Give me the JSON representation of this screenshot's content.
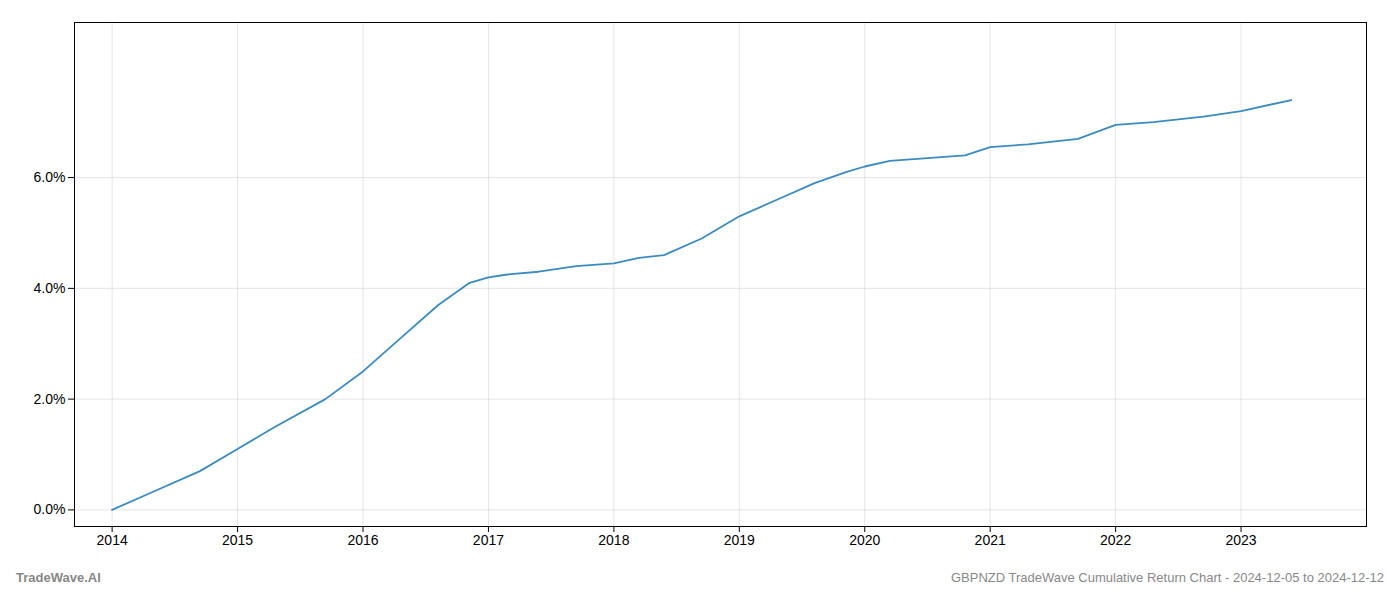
{
  "chart_data": {
    "type": "line",
    "x": [
      2014.0,
      2014.3,
      2014.7,
      2015.0,
      2015.3,
      2015.7,
      2016.0,
      2016.3,
      2016.6,
      2016.85,
      2017.0,
      2017.15,
      2017.4,
      2017.7,
      2018.0,
      2018.2,
      2018.4,
      2018.7,
      2019.0,
      2019.3,
      2019.6,
      2019.85,
      2020.0,
      2020.2,
      2020.5,
      2020.8,
      2021.0,
      2021.3,
      2021.7,
      2022.0,
      2022.3,
      2022.7,
      2023.0,
      2023.4
    ],
    "values": [
      0.0,
      0.003,
      0.007,
      0.011,
      0.015,
      0.02,
      0.025,
      0.031,
      0.037,
      0.041,
      0.042,
      0.0425,
      0.043,
      0.044,
      0.0445,
      0.0455,
      0.046,
      0.049,
      0.053,
      0.056,
      0.059,
      0.061,
      0.062,
      0.063,
      0.0635,
      0.064,
      0.0655,
      0.066,
      0.067,
      0.0695,
      0.07,
      0.071,
      0.072,
      0.074
    ],
    "color": "#3a8bbf",
    "xlim": [
      2013.7,
      2024.0
    ],
    "ylim": [
      -0.003,
      0.088
    ],
    "xticks": [
      2014,
      2015,
      2016,
      2017,
      2018,
      2019,
      2020,
      2021,
      2022,
      2023
    ],
    "yticks": [
      {
        "value": 0.0,
        "label": "0.0%"
      },
      {
        "value": 0.02,
        "label": "2.0%"
      },
      {
        "value": 0.04,
        "label": "4.0%"
      },
      {
        "value": 0.06,
        "label": "6.0%"
      }
    ],
    "grid": true,
    "annotations": [
      "TradeWave.AI",
      "GBPNZD TradeWave Cumulative Return Chart - 2024-12-05 to 2024-12-12"
    ]
  }
}
